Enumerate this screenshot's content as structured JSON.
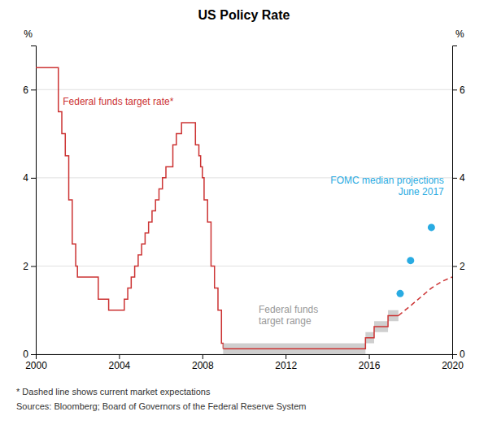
{
  "chart_data": {
    "type": "line",
    "title": "US Policy Rate",
    "ylabel": "%",
    "xlim": [
      2000,
      2020
    ],
    "ylim": [
      0,
      7
    ],
    "xticks": [
      2000,
      2004,
      2008,
      2012,
      2016,
      2020
    ],
    "yticks": [
      0,
      2,
      4,
      6
    ],
    "grid": true,
    "series": [
      {
        "type": "line",
        "line_style": "steps",
        "color": "#cc3333",
        "x": [
          2000.0,
          2000.083,
          2000.5,
          2001.0,
          2001.083,
          2001.25,
          2001.417,
          2001.583,
          2001.75,
          2001.917,
          2002.0,
          2003.0,
          2003.5,
          2004.083,
          2004.25,
          2004.417,
          2004.583,
          2004.75,
          2004.917,
          2005.083,
          2005.25,
          2005.417,
          2005.583,
          2005.75,
          2005.917,
          2006.083,
          2006.25,
          2006.583,
          2006.75,
          2007.0,
          2007.5,
          2007.667,
          2007.833,
          2007.917,
          2008.0,
          2008.083,
          2008.25,
          2008.417,
          2008.583,
          2008.75,
          2008.917,
          2008.999
        ],
        "values": [
          6.5,
          6.5,
          6.5,
          6.5,
          5.5,
          5.0,
          4.5,
          3.5,
          2.5,
          2.0,
          1.75,
          1.25,
          1.0,
          1.0,
          1.25,
          1.5,
          1.75,
          2.0,
          2.25,
          2.5,
          2.75,
          3.0,
          3.25,
          3.5,
          3.75,
          4.0,
          4.25,
          4.75,
          5.0,
          5.25,
          5.25,
          4.75,
          4.5,
          4.25,
          4.0,
          3.5,
          3.0,
          2.0,
          1.5,
          1.0,
          0.25,
          0.125
        ]
      },
      {
        "type": "area",
        "color": "#bbbbbb",
        "x": [
          2008.999,
          2015.833,
          2015.833,
          2016.25,
          2016.25,
          2016.917,
          2016.917,
          2017.417
        ],
        "lower": [
          0.0,
          0.0,
          0.25,
          0.25,
          0.5,
          0.5,
          0.75,
          0.75
        ],
        "upper": [
          0.25,
          0.25,
          0.5,
          0.5,
          0.75,
          0.75,
          1.0,
          1.0
        ]
      },
      {
        "type": "line",
        "line_style": "steps",
        "color": "#cc3333",
        "x": [
          2008.999,
          2015.833,
          2015.833,
          2016.25,
          2016.25,
          2016.917,
          2016.917,
          2017.417
        ],
        "values": [
          0.125,
          0.125,
          0.375,
          0.375,
          0.625,
          0.625,
          0.875,
          0.875
        ]
      },
      {
        "type": "line",
        "line_style": "dashed",
        "color": "#cc3333",
        "x": [
          2017.417,
          2018.0,
          2018.5,
          2019.0,
          2019.5,
          2020.0
        ],
        "values": [
          0.875,
          1.1,
          1.3,
          1.5,
          1.65,
          1.75
        ]
      },
      {
        "type": "scatter",
        "marker": "circle",
        "color": "#29ABE2",
        "x": [
          2017.5,
          2018.0,
          2019.0
        ],
        "values": [
          1.375,
          2.125,
          2.875
        ]
      }
    ],
    "annotations": [
      "Federal funds target rate*",
      "Federal funds\ntarget range",
      "FOMC median projections\nJune 2017"
    ],
    "footnotes": [
      "*    Dashed line shows current market expectations",
      "Sources: Bloomberg; Board of Governors of the Federal Reserve System"
    ]
  }
}
